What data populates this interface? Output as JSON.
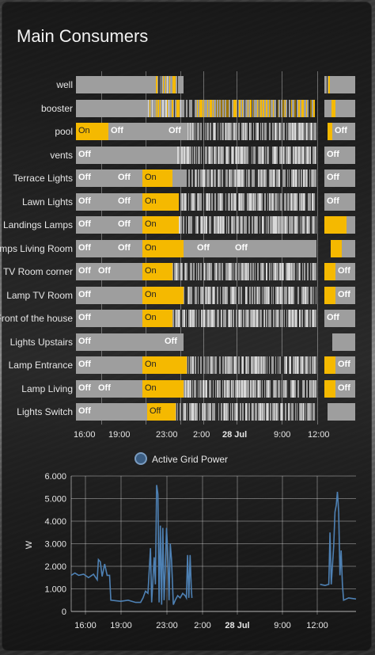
{
  "card": {
    "title": "Main Consumers"
  },
  "colors": {
    "on": "#f5b900",
    "off": "#9e9e9e",
    "line": "#4e81b4"
  },
  "timeline": {
    "rows": [
      {
        "label": "well",
        "states": []
      },
      {
        "label": "booster",
        "states": []
      },
      {
        "label": "pool",
        "states": [
          "On",
          "Off",
          "Off",
          "Off"
        ]
      },
      {
        "label": "vents",
        "states": [
          "Off",
          "Off"
        ]
      },
      {
        "label": "Terrace Lights",
        "states": [
          "Off",
          "Off",
          "On",
          "Off"
        ]
      },
      {
        "label": "Lawn Lights",
        "states": [
          "Off",
          "Off",
          "On",
          "Off"
        ]
      },
      {
        "label": "Landings Lamps",
        "states": [
          "Off",
          "Off",
          "On"
        ]
      },
      {
        "label": "Lamps Living Room",
        "states": [
          "Off",
          "Off",
          "On",
          "Off",
          "Off"
        ]
      },
      {
        "label": "TV Room corner",
        "states": [
          "Off",
          "Off",
          "On",
          "Off"
        ]
      },
      {
        "label": "Lamp TV Room",
        "states": [
          "Off",
          "On",
          "Off"
        ]
      },
      {
        "label": "Front of the house",
        "states": [
          "Off",
          "On",
          "Off"
        ]
      },
      {
        "label": "Lights Upstairs",
        "states": [
          "Off",
          "Off"
        ]
      },
      {
        "label": "Lamp Entrance",
        "states": [
          "Off",
          "On",
          "Off"
        ]
      },
      {
        "label": "Lamp Living",
        "states": [
          "Off",
          "Off",
          "On",
          "Off"
        ]
      },
      {
        "label": "Lights Switch",
        "states": [
          "Off",
          "Off"
        ]
      }
    ],
    "x_ticks": [
      "16:00",
      "19:00",
      "23:00",
      "2:00",
      "28 Jul",
      "9:00",
      "12:00"
    ]
  },
  "chart_data": {
    "type": "line",
    "series": [
      {
        "name": "Active Grid Power"
      }
    ],
    "ylabel": "W",
    "y_ticks": [
      "0",
      "1.000",
      "2.000",
      "3.000",
      "4.000",
      "5.000",
      "6.000"
    ],
    "ylim": [
      0,
      6000
    ],
    "x_ticks": [
      "16:00",
      "19:00",
      "23:00",
      "2:00",
      "28 Jul",
      "9:00",
      "12:00"
    ],
    "grid": true,
    "legend": "top-center",
    "points": [
      [
        0.0,
        1600
      ],
      [
        0.3,
        1700
      ],
      [
        0.6,
        1600
      ],
      [
        1.0,
        1650
      ],
      [
        1.4,
        1500
      ],
      [
        1.8,
        1650
      ],
      [
        2.1,
        1400
      ],
      [
        2.2,
        2300
      ],
      [
        2.35,
        2200
      ],
      [
        2.5,
        1550
      ],
      [
        2.7,
        2100
      ],
      [
        2.9,
        1600
      ],
      [
        3.1,
        1600
      ],
      [
        3.2,
        500
      ],
      [
        4.0,
        450
      ],
      [
        4.6,
        500
      ],
      [
        5.2,
        400
      ],
      [
        5.6,
        400
      ],
      [
        5.8,
        600
      ],
      [
        6.0,
        900
      ],
      [
        6.2,
        800
      ],
      [
        6.4,
        2800
      ],
      [
        6.5,
        400
      ],
      [
        6.7,
        2400
      ],
      [
        6.8,
        1200
      ],
      [
        6.9,
        5600
      ],
      [
        7.0,
        5200
      ],
      [
        7.1,
        400
      ],
      [
        7.2,
        3800
      ],
      [
        7.3,
        300
      ],
      [
        7.4,
        3700
      ],
      [
        7.5,
        500
      ],
      [
        7.6,
        2000
      ],
      [
        7.7,
        3700
      ],
      [
        7.8,
        2600
      ],
      [
        7.9,
        500
      ],
      [
        8.0,
        3000
      ],
      [
        8.1,
        2300
      ],
      [
        8.25,
        300
      ],
      [
        8.4,
        500
      ],
      [
        8.6,
        700
      ],
      [
        8.8,
        600
      ],
      [
        9.0,
        800
      ],
      [
        9.2,
        700
      ],
      [
        9.3,
        600
      ],
      [
        9.4,
        2500
      ],
      [
        9.5,
        600
      ],
      [
        9.6,
        2500
      ],
      [
        9.7,
        1000
      ],
      [
        9.75,
        600
      ],
      [
        20.1,
        1200
      ],
      [
        20.5,
        1150
      ],
      [
        20.8,
        1200
      ],
      [
        20.9,
        3500
      ],
      [
        21.0,
        1200
      ],
      [
        21.2,
        2900
      ],
      [
        21.3,
        4400
      ],
      [
        21.4,
        4700
      ],
      [
        21.5,
        5300
      ],
      [
        21.6,
        4400
      ],
      [
        21.7,
        1600
      ],
      [
        21.8,
        2700
      ],
      [
        21.9,
        1200
      ],
      [
        22.0,
        500
      ],
      [
        22.4,
        600
      ],
      [
        23.0,
        550
      ]
    ]
  }
}
